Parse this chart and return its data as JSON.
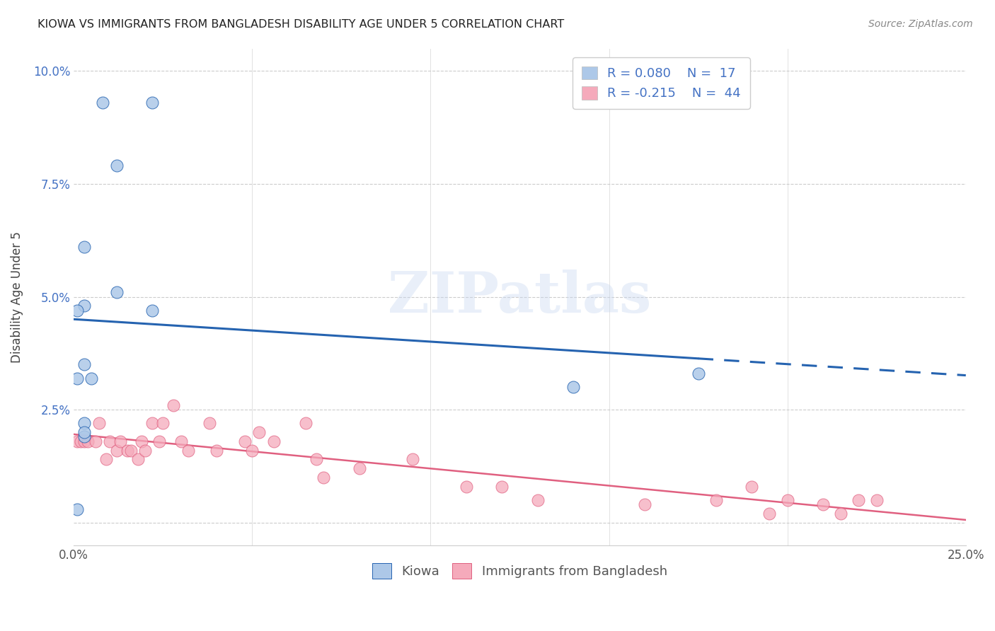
{
  "title": "KIOWA VS IMMIGRANTS FROM BANGLADESH DISABILITY AGE UNDER 5 CORRELATION CHART",
  "source": "Source: ZipAtlas.com",
  "ylabel": "Disability Age Under 5",
  "xlim": [
    0.0,
    0.25
  ],
  "ylim": [
    -0.005,
    0.105
  ],
  "yticks": [
    0.0,
    0.025,
    0.05,
    0.075,
    0.1
  ],
  "ytick_labels": [
    "",
    "2.5%",
    "5.0%",
    "7.5%",
    "10.0%"
  ],
  "xticks": [
    0.0,
    0.05,
    0.1,
    0.15,
    0.2,
    0.25
  ],
  "xtick_labels": [
    "0.0%",
    "",
    "",
    "",
    "",
    "25.0%"
  ],
  "legend_labels": [
    "Kiowa",
    "Immigrants from Bangladesh"
  ],
  "kiowa_R": 0.08,
  "kiowa_N": 17,
  "bangladesh_R": -0.215,
  "bangladesh_N": 44,
  "kiowa_color": "#adc8e8",
  "bangladesh_color": "#f5aabb",
  "kiowa_line_color": "#2563b0",
  "bangladesh_line_color": "#e06080",
  "background_color": "#ffffff",
  "watermark_text": "ZIPatlas",
  "kiowa_x": [
    0.008,
    0.022,
    0.012,
    0.003,
    0.003,
    0.012,
    0.022,
    0.003,
    0.001,
    0.001,
    0.005,
    0.003,
    0.003,
    0.14,
    0.175,
    0.003,
    0.001
  ],
  "kiowa_y": [
    0.093,
    0.093,
    0.079,
    0.061,
    0.048,
    0.051,
    0.047,
    0.035,
    0.047,
    0.032,
    0.032,
    0.022,
    0.019,
    0.03,
    0.033,
    0.02,
    0.003
  ],
  "bangladesh_x": [
    0.001,
    0.002,
    0.003,
    0.004,
    0.006,
    0.007,
    0.009,
    0.01,
    0.012,
    0.013,
    0.015,
    0.016,
    0.018,
    0.019,
    0.02,
    0.022,
    0.024,
    0.025,
    0.028,
    0.03,
    0.032,
    0.038,
    0.04,
    0.048,
    0.05,
    0.052,
    0.056,
    0.065,
    0.068,
    0.07,
    0.08,
    0.095,
    0.11,
    0.12,
    0.13,
    0.16,
    0.18,
    0.19,
    0.195,
    0.2,
    0.21,
    0.215,
    0.22,
    0.225
  ],
  "bangladesh_y": [
    0.018,
    0.018,
    0.018,
    0.018,
    0.018,
    0.022,
    0.014,
    0.018,
    0.016,
    0.018,
    0.016,
    0.016,
    0.014,
    0.018,
    0.016,
    0.022,
    0.018,
    0.022,
    0.026,
    0.018,
    0.016,
    0.022,
    0.016,
    0.018,
    0.016,
    0.02,
    0.018,
    0.022,
    0.014,
    0.01,
    0.012,
    0.014,
    0.008,
    0.008,
    0.005,
    0.004,
    0.005,
    0.008,
    0.002,
    0.005,
    0.004,
    0.002,
    0.005,
    0.005
  ],
  "kiowa_line_start_x": 0.0,
  "kiowa_line_end_solid_x": 0.175,
  "kiowa_line_end_x": 0.25,
  "bangladesh_line_start_x": 0.0,
  "bangladesh_line_end_x": 0.25
}
